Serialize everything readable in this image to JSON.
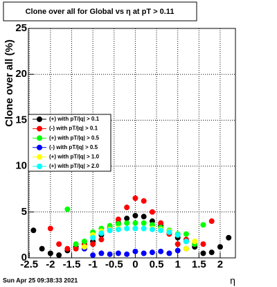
{
  "chart_data": {
    "type": "scatter",
    "title": "Clone  over all for Global vs  η at pT > 0.11",
    "x_label": "η",
    "y_label": "Clone  over all (%)",
    "footer": "Sun Apr 25 09:38:33 2021",
    "x": [
      -2.4,
      -2.2,
      -2.0,
      -1.8,
      -1.6,
      -1.4,
      -1.2,
      -1.0,
      -0.8,
      -0.6,
      -0.4,
      -0.2,
      0,
      0.2,
      0.4,
      0.6,
      0.8,
      1.0,
      1.2,
      1.4,
      1.6,
      1.8,
      2.0,
      2.2
    ],
    "series": [
      {
        "name": "(+) with pT/|q| > 0.1",
        "color": "#000000",
        "values": [
          3.0,
          1.0,
          0.5,
          0.3,
          0.8,
          1.2,
          1.5,
          1.8,
          2.5,
          3.2,
          3.8,
          4.3,
          4.6,
          4.5,
          4.0,
          3.5,
          2.8,
          2.2,
          1.8,
          1.2,
          0.5,
          0.6,
          1.2,
          2.2
        ]
      },
      {
        "name": "(-) with pT/|q| > 0.1",
        "color": "#ff0000",
        "values": [
          null,
          null,
          3.2,
          1.5,
          1.0,
          1.0,
          1.5,
          1.5,
          2.0,
          3.0,
          4.2,
          5.5,
          6.5,
          6.2,
          5.0,
          3.8,
          2.6,
          1.5,
          2.0,
          1.5,
          1.5,
          4.0,
          null,
          null
        ]
      },
      {
        "name": "(+) with pT/|q| > 0.5",
        "color": "#00ff00",
        "values": [
          null,
          null,
          null,
          null,
          5.3,
          1.5,
          1.8,
          2.8,
          3.2,
          3.5,
          3.7,
          3.8,
          3.8,
          3.8,
          3.6,
          3.3,
          3.0,
          2.6,
          2.6,
          1.5,
          3.6,
          null,
          null,
          null
        ]
      },
      {
        "name": "(-) with pT/|q| > 0.5",
        "color": "#0000ff",
        "values": [
          null,
          null,
          null,
          null,
          null,
          null,
          1.0,
          0.3,
          0.5,
          0.4,
          0.5,
          0.4,
          0.7,
          0.5,
          0.6,
          0.7,
          0.5,
          0.8,
          1.0,
          null,
          null,
          null,
          null,
          null
        ]
      },
      {
        "name": "(+) with pT/|q| > 1.0",
        "color": "#ffff00",
        "values": [
          null,
          null,
          null,
          null,
          null,
          null,
          1.2,
          2.5,
          2.9,
          3.1,
          3.2,
          3.2,
          3.2,
          3.2,
          3.2,
          3.1,
          2.9,
          2.5,
          1.0,
          1.8,
          null,
          null,
          null,
          null
        ]
      },
      {
        "name": "(+) with pT/|q| > 2.0",
        "color": "#00ffff",
        "values": [
          null,
          null,
          null,
          null,
          null,
          null,
          null,
          2.2,
          2.7,
          3.0,
          3.1,
          3.2,
          3.2,
          3.2,
          3.1,
          3.0,
          2.8,
          2.5,
          1.8,
          null,
          null,
          null,
          null,
          null
        ]
      }
    ],
    "xlim": [
      -2.52,
      2.36
    ],
    "ylim": [
      0,
      25
    ],
    "xticks": [
      -2.5,
      -2,
      -1.5,
      -1,
      -0.5,
      0,
      0.5,
      1,
      1.5,
      2
    ],
    "yticks": [
      0,
      5,
      10,
      15,
      20,
      25
    ],
    "grid": true
  }
}
